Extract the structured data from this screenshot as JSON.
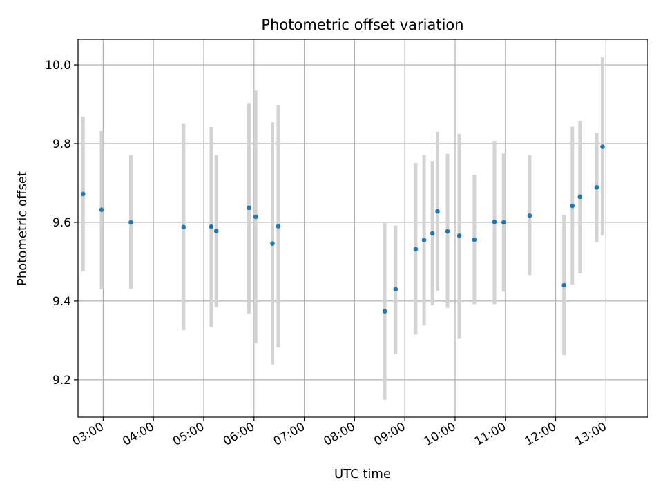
{
  "chart_data": {
    "type": "scatter",
    "title": "Photometric offset variation",
    "xlabel": "UTC time",
    "ylabel": "Photometric offset",
    "xlim": [
      "02:30",
      "13:50"
    ],
    "ylim": [
      9.105,
      10.065
    ],
    "x_ticks": [
      "03:00",
      "04:00",
      "05:00",
      "06:00",
      "07:00",
      "08:00",
      "09:00",
      "10:00",
      "11:00",
      "12:00",
      "13:00"
    ],
    "y_ticks": [
      "9.2",
      "9.4",
      "9.6",
      "9.8",
      "10.0"
    ],
    "grid": true,
    "colors": {
      "point": "#1f77b4",
      "errorbar": "#d3d3d3",
      "grid": "#b0b0b0"
    },
    "series": [
      {
        "points": [
          {
            "x": "02:36",
            "y": 9.672,
            "yerr_low": 9.476,
            "yerr_high": 9.868
          },
          {
            "x": "02:58",
            "y": 9.632,
            "yerr_low": 9.43,
            "yerr_high": 9.833
          },
          {
            "x": "03:33",
            "y": 9.6,
            "yerr_low": 9.431,
            "yerr_high": 9.771
          },
          {
            "x": "04:36",
            "y": 9.588,
            "yerr_low": 9.326,
            "yerr_high": 9.851
          },
          {
            "x": "05:09",
            "y": 9.589,
            "yerr_low": 9.334,
            "yerr_high": 9.842
          },
          {
            "x": "05:15",
            "y": 9.578,
            "yerr_low": 9.385,
            "yerr_high": 9.771
          },
          {
            "x": "05:54",
            "y": 9.637,
            "yerr_low": 9.368,
            "yerr_high": 9.903
          },
          {
            "x": "06:02",
            "y": 9.614,
            "yerr_low": 9.293,
            "yerr_high": 9.935
          },
          {
            "x": "06:22",
            "y": 9.546,
            "yerr_low": 9.239,
            "yerr_high": 9.854
          },
          {
            "x": "06:29",
            "y": 9.59,
            "yerr_low": 9.282,
            "yerr_high": 9.898
          },
          {
            "x": "08:36",
            "y": 9.374,
            "yerr_low": 9.149,
            "yerr_high": 9.598
          },
          {
            "x": "08:49",
            "y": 9.43,
            "yerr_low": 9.266,
            "yerr_high": 9.592
          },
          {
            "x": "09:13",
            "y": 9.532,
            "yerr_low": 9.315,
            "yerr_high": 9.751
          },
          {
            "x": "09:23",
            "y": 9.555,
            "yerr_low": 9.338,
            "yerr_high": 9.772
          },
          {
            "x": "09:33",
            "y": 9.572,
            "yerr_low": 9.389,
            "yerr_high": 9.756
          },
          {
            "x": "09:39",
            "y": 9.628,
            "yerr_low": 9.426,
            "yerr_high": 9.83
          },
          {
            "x": "09:51",
            "y": 9.577,
            "yerr_low": 9.383,
            "yerr_high": 9.774
          },
          {
            "x": "10:05",
            "y": 9.566,
            "yerr_low": 9.304,
            "yerr_high": 9.825
          },
          {
            "x": "10:23",
            "y": 9.556,
            "yerr_low": 9.392,
            "yerr_high": 9.721
          },
          {
            "x": "10:47",
            "y": 9.601,
            "yerr_low": 9.392,
            "yerr_high": 9.807
          },
          {
            "x": "10:58",
            "y": 9.6,
            "yerr_low": 9.424,
            "yerr_high": 9.776
          },
          {
            "x": "11:29",
            "y": 9.617,
            "yerr_low": 9.466,
            "yerr_high": 9.771
          },
          {
            "x": "12:10",
            "y": 9.44,
            "yerr_low": 9.263,
            "yerr_high": 9.619
          },
          {
            "x": "12:20",
            "y": 9.642,
            "yerr_low": 9.442,
            "yerr_high": 9.843
          },
          {
            "x": "12:29",
            "y": 9.665,
            "yerr_low": 9.47,
            "yerr_high": 9.858
          },
          {
            "x": "12:49",
            "y": 9.689,
            "yerr_low": 9.55,
            "yerr_high": 9.828
          },
          {
            "x": "12:56",
            "y": 9.792,
            "yerr_low": 9.567,
            "yerr_high": 10.019
          }
        ]
      }
    ]
  }
}
